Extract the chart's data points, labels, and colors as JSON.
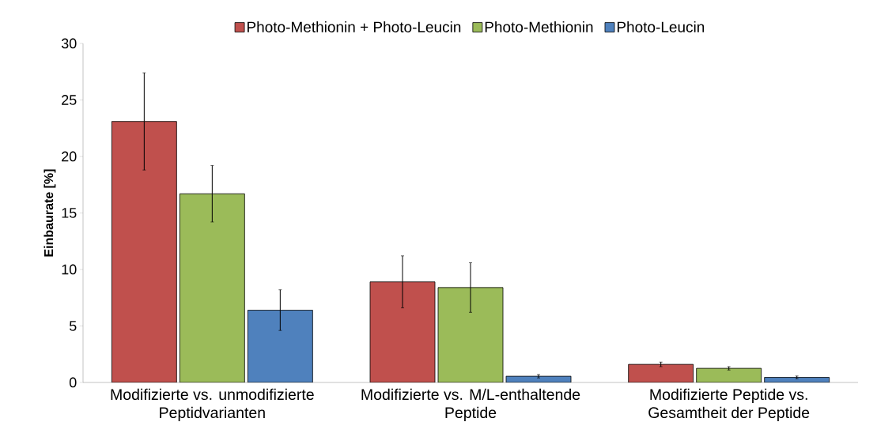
{
  "chart_data": {
    "type": "bar",
    "ylabel": "**Einbaurate [%]**",
    "categories": [
      "Modifizierte vs. unmodifizierte Peptidvarianten",
      "Modifizierte vs. M/L-enthaltende Peptide",
      "Modifizierte Peptide vs. Gesamtheit der Peptide"
    ],
    "series": [
      {
        "name": "Photo-Methionin + Photo-Leucin",
        "color": "#c0504d",
        "values": [
          23.1,
          8.9,
          1.6
        ],
        "errors": [
          4.3,
          2.3,
          0.2
        ]
      },
      {
        "name": "Photo-Methionin",
        "color": "#9bbb59",
        "values": [
          16.7,
          8.4,
          1.25
        ],
        "errors": [
          2.5,
          2.2,
          0.15
        ]
      },
      {
        "name": "Photo-Leucin",
        "color": "#4f81bd",
        "values": [
          6.4,
          0.55,
          0.45
        ],
        "errors": [
          1.8,
          0.15,
          0.12
        ]
      }
    ],
    "ylim": [
      0,
      30
    ],
    "yticks": [
      0,
      5,
      10,
      15,
      20,
      25,
      30
    ],
    "legend": "top"
  }
}
